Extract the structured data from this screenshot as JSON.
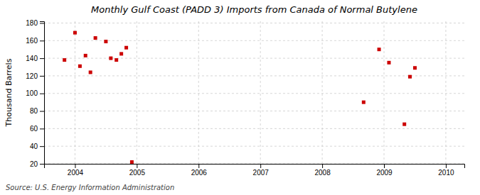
{
  "chart_data": {
    "type": "scatter",
    "title": "Monthly Gulf Coast (PADD 3) Imports from Canada of Normal Butylene",
    "ylabel": "Thousand Barrels",
    "source": "Source: U.S. Energy Information Administration",
    "color": "#cc0000",
    "marker": "square",
    "grid": true,
    "xlim": [
      2003.5,
      2010.3
    ],
    "ylim": [
      20,
      182
    ],
    "xticks": [
      2004,
      2005,
      2006,
      2007,
      2008,
      2009,
      2010
    ],
    "yticks": [
      20,
      40,
      60,
      80,
      100,
      120,
      140,
      160,
      180
    ],
    "x": [
      2003.83,
      2004.0,
      2004.08,
      2004.17,
      2004.25,
      2004.33,
      2004.5,
      2004.58,
      2004.67,
      2004.75,
      2004.83,
      2004.92,
      2008.67,
      2008.92,
      2009.08,
      2009.33,
      2009.42,
      2009.5
    ],
    "values": [
      138,
      169,
      131,
      143,
      124,
      163,
      159,
      140,
      138,
      145,
      152,
      22,
      90,
      150,
      135,
      65,
      119,
      129
    ]
  }
}
